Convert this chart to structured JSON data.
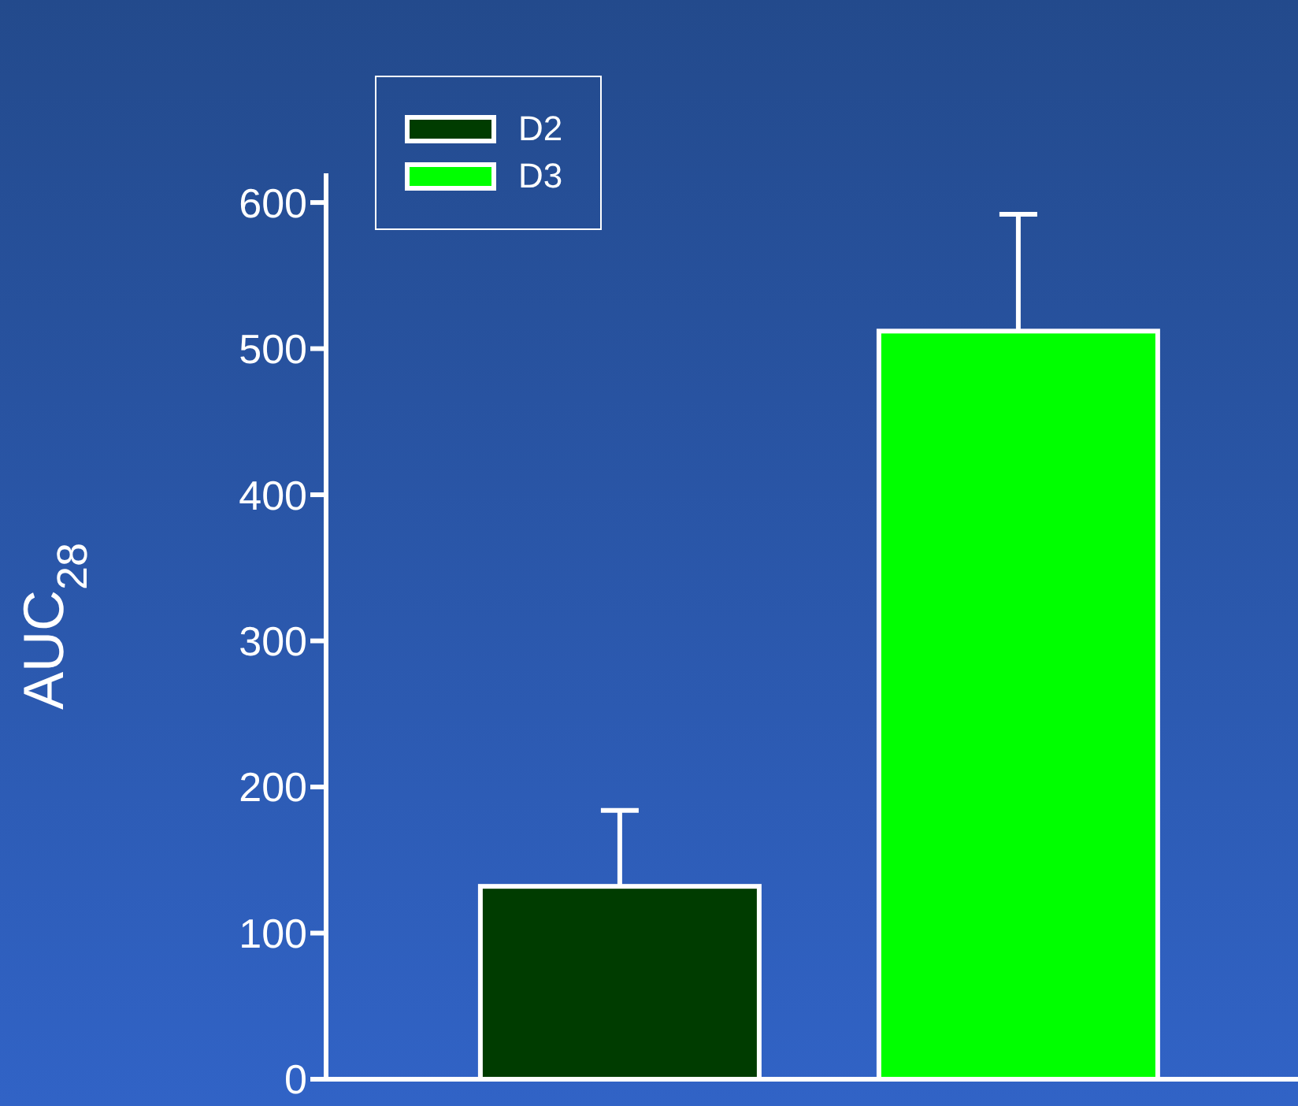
{
  "chart_data": {
    "type": "bar",
    "ylabel": "AUC$_{28}$",
    "categories": [
      null,
      null
    ],
    "series": [
      {
        "name": "D2",
        "color": "#003c00",
        "values": [
          132,
          null
        ],
        "errors": [
          [
            132,
            184
          ],
          null
        ]
      },
      {
        "name": "D3",
        "color": "#00ff00",
        "values": [
          null,
          512
        ],
        "errors": [
          null,
          [
            512,
            592
          ]
        ]
      }
    ],
    "ylim": [
      0,
      620
    ],
    "yticks": [
      0,
      100,
      200,
      300,
      400,
      500,
      600
    ],
    "legend": "top left"
  }
}
